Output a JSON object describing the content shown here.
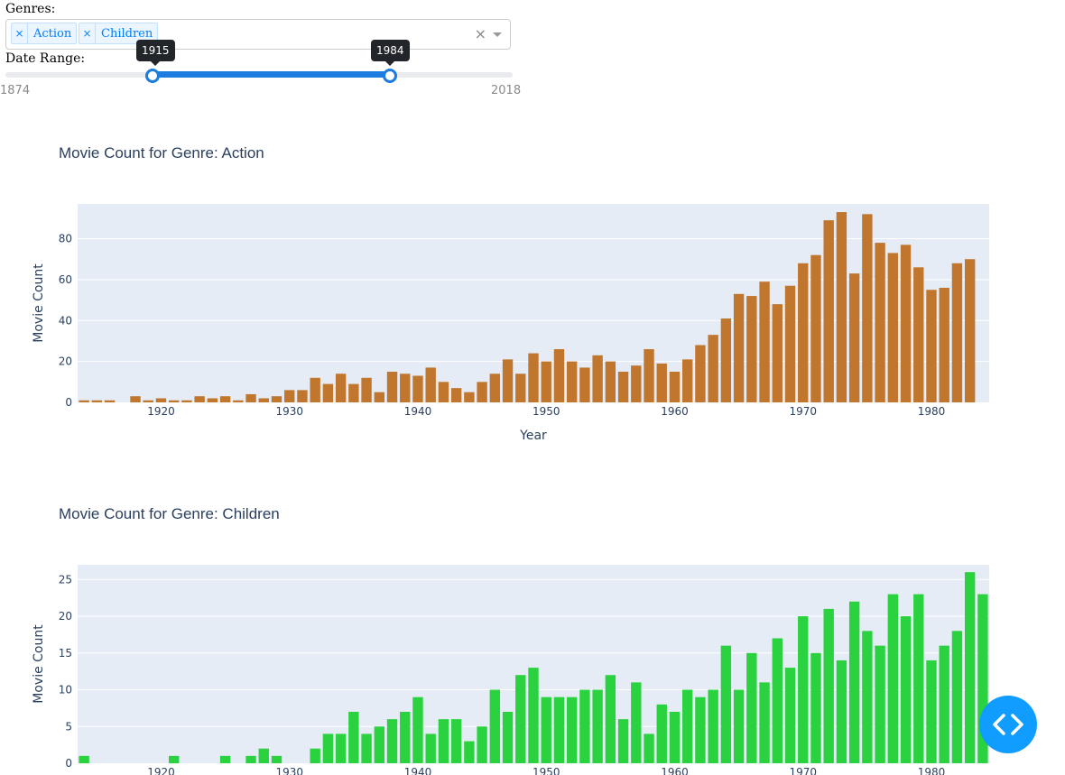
{
  "controls": {
    "genres_label": "Genres:",
    "date_label": "Date Range:",
    "selected_genres": [
      "Action",
      "Children"
    ],
    "remove_glyph": "×",
    "clear_glyph": "×",
    "slider": {
      "min_label": "1874",
      "max_label": "2018",
      "min": 1874,
      "max": 2018,
      "start": 1915,
      "end": 1984,
      "start_label": "1915",
      "end_label": "1984"
    }
  },
  "fab_icon": "code-icon",
  "chart_data": [
    {
      "type": "bar",
      "title": "Movie Count for Genre: Action",
      "xlabel": "Year",
      "ylabel": "Movie Count",
      "color": "#c0762d",
      "xlim": [
        1914,
        1984
      ],
      "ylim": [
        0,
        97
      ],
      "yticks": [
        0,
        20,
        40,
        60,
        80
      ],
      "xticks": [
        1920,
        1930,
        1940,
        1950,
        1960,
        1970,
        1980
      ],
      "x": [
        1914,
        1915,
        1916,
        1917,
        1918,
        1919,
        1920,
        1921,
        1922,
        1923,
        1924,
        1925,
        1926,
        1927,
        1928,
        1929,
        1930,
        1931,
        1932,
        1933,
        1934,
        1935,
        1936,
        1937,
        1938,
        1939,
        1940,
        1941,
        1942,
        1943,
        1944,
        1945,
        1946,
        1947,
        1948,
        1949,
        1950,
        1951,
        1952,
        1953,
        1954,
        1955,
        1956,
        1957,
        1958,
        1959,
        1960,
        1961,
        1962,
        1963,
        1964,
        1965,
        1966,
        1967,
        1968,
        1969,
        1970,
        1971,
        1972,
        1973,
        1974,
        1975,
        1976,
        1977,
        1978,
        1979,
        1980,
        1981,
        1982,
        1983,
        1984
      ],
      "values": [
        1,
        1,
        1,
        0,
        3,
        1,
        2,
        1,
        1,
        3,
        2,
        3,
        1,
        4,
        2,
        3,
        6,
        6,
        12,
        9,
        14,
        9,
        12,
        5,
        15,
        14,
        13,
        17,
        10,
        7,
        5,
        10,
        14,
        21,
        14,
        24,
        20,
        26,
        20,
        17,
        23,
        20,
        15,
        18,
        26,
        19,
        15,
        21,
        28,
        33,
        41,
        53,
        52,
        59,
        48,
        57,
        68,
        72,
        89,
        93,
        63,
        92,
        78,
        73,
        77,
        66,
        55,
        56,
        68,
        70,
        0
      ]
    },
    {
      "type": "bar",
      "title": "Movie Count for Genre: Children",
      "xlabel": "",
      "ylabel": "Movie Count",
      "color": "#2bd23f",
      "xlim": [
        1914,
        1984
      ],
      "ylim": [
        0,
        27
      ],
      "yticks": [
        0,
        5,
        10,
        15,
        20,
        25
      ],
      "xticks": [
        1920,
        1930,
        1940,
        1950,
        1960,
        1970,
        1980
      ],
      "x": [
        1914,
        1915,
        1916,
        1917,
        1918,
        1919,
        1920,
        1921,
        1922,
        1923,
        1924,
        1925,
        1926,
        1927,
        1928,
        1929,
        1930,
        1931,
        1932,
        1933,
        1934,
        1935,
        1936,
        1937,
        1938,
        1939,
        1940,
        1941,
        1942,
        1943,
        1944,
        1945,
        1946,
        1947,
        1948,
        1949,
        1950,
        1951,
        1952,
        1953,
        1954,
        1955,
        1956,
        1957,
        1958,
        1959,
        1960,
        1961,
        1962,
        1963,
        1964,
        1965,
        1966,
        1967,
        1968,
        1969,
        1970,
        1971,
        1972,
        1973,
        1974,
        1975,
        1976,
        1977,
        1978,
        1979,
        1980,
        1981,
        1982,
        1983,
        1984
      ],
      "values": [
        1,
        0,
        0,
        0,
        0,
        0,
        0,
        1,
        0,
        0,
        0,
        1,
        0,
        1,
        2,
        1,
        0,
        0,
        2,
        4,
        4,
        7,
        4,
        5,
        6,
        7,
        9,
        4,
        6,
        6,
        3,
        5,
        10,
        7,
        12,
        13,
        9,
        9,
        9,
        10,
        10,
        12,
        6,
        11,
        4,
        8,
        7,
        10,
        9,
        10,
        16,
        10,
        15,
        11,
        17,
        13,
        20,
        15,
        21,
        14,
        22,
        18,
        16,
        23,
        20,
        23,
        14,
        16,
        18,
        26,
        23
      ]
    }
  ]
}
